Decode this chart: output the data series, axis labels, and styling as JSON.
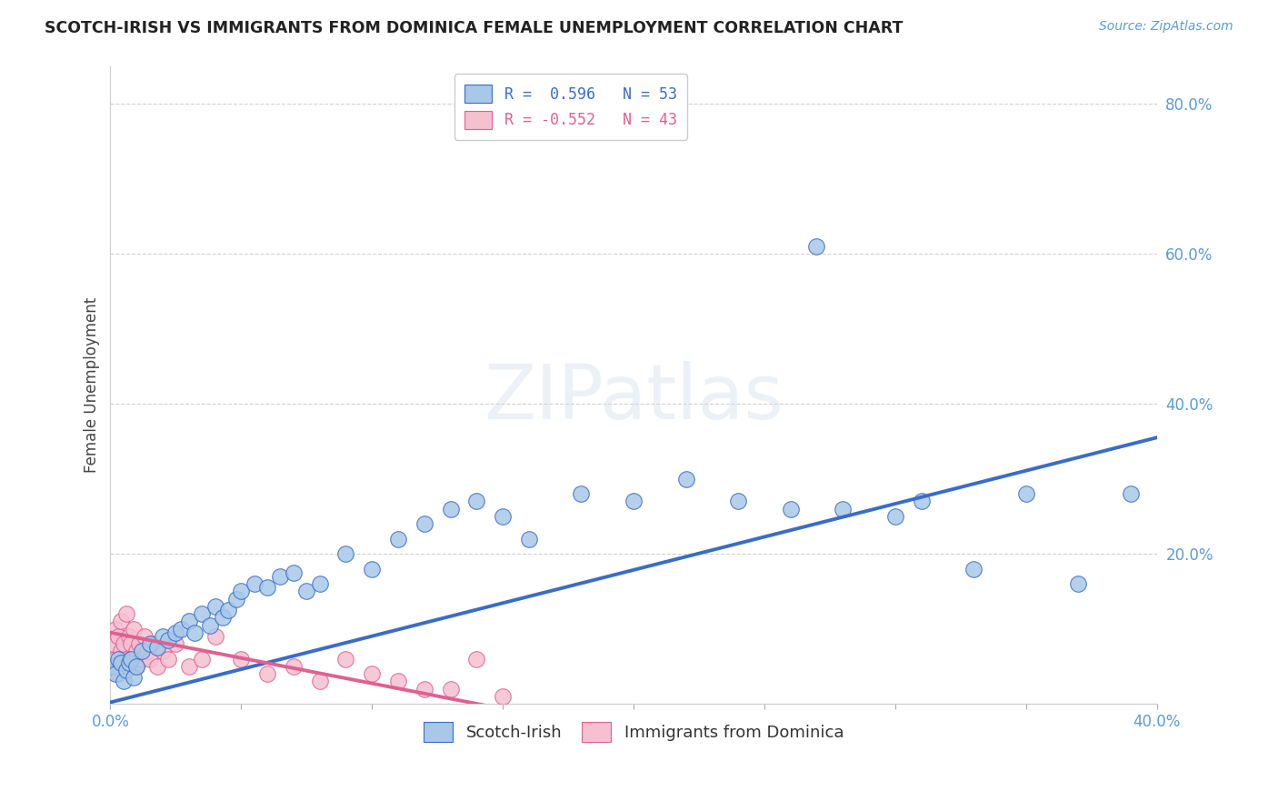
{
  "title": "SCOTCH-IRISH VS IMMIGRANTS FROM DOMINICA FEMALE UNEMPLOYMENT CORRELATION CHART",
  "source": "Source: ZipAtlas.com",
  "ylabel": "Female Unemployment",
  "x_min": 0.0,
  "x_max": 0.4,
  "y_min": 0.0,
  "y_max": 0.85,
  "background_color": "#ffffff",
  "scotch_irish_color": "#a8c8e8",
  "dominica_color": "#f5c0d0",
  "scotch_irish_line_color": "#3a6cc8",
  "dominica_line_color": "#e06090",
  "legend_r1": "R =  0.596",
  "legend_n1": "N = 53",
  "legend_r2": "R = -0.552",
  "legend_n2": "N = 43",
  "watermark": "ZIPatlas",
  "scotch_irish_x": [
    0.001,
    0.002,
    0.003,
    0.004,
    0.005,
    0.006,
    0.007,
    0.008,
    0.009,
    0.01,
    0.012,
    0.015,
    0.018,
    0.02,
    0.022,
    0.025,
    0.027,
    0.03,
    0.032,
    0.035,
    0.038,
    0.04,
    0.043,
    0.045,
    0.048,
    0.05,
    0.055,
    0.06,
    0.065,
    0.07,
    0.075,
    0.08,
    0.09,
    0.1,
    0.11,
    0.12,
    0.13,
    0.14,
    0.15,
    0.16,
    0.18,
    0.2,
    0.22,
    0.24,
    0.26,
    0.27,
    0.28,
    0.3,
    0.31,
    0.33,
    0.35,
    0.37,
    0.39
  ],
  "scotch_irish_y": [
    0.05,
    0.04,
    0.06,
    0.055,
    0.03,
    0.045,
    0.055,
    0.06,
    0.035,
    0.05,
    0.07,
    0.08,
    0.075,
    0.09,
    0.085,
    0.095,
    0.1,
    0.11,
    0.095,
    0.12,
    0.105,
    0.13,
    0.115,
    0.125,
    0.14,
    0.15,
    0.16,
    0.155,
    0.17,
    0.175,
    0.15,
    0.16,
    0.2,
    0.18,
    0.22,
    0.24,
    0.26,
    0.27,
    0.25,
    0.22,
    0.28,
    0.27,
    0.3,
    0.27,
    0.26,
    0.61,
    0.26,
    0.25,
    0.27,
    0.18,
    0.28,
    0.16,
    0.28
  ],
  "dominica_x": [
    0.001,
    0.001,
    0.002,
    0.002,
    0.003,
    0.003,
    0.004,
    0.004,
    0.005,
    0.005,
    0.006,
    0.006,
    0.007,
    0.007,
    0.008,
    0.008,
    0.009,
    0.01,
    0.01,
    0.011,
    0.012,
    0.013,
    0.014,
    0.015,
    0.016,
    0.018,
    0.02,
    0.022,
    0.025,
    0.03,
    0.035,
    0.04,
    0.05,
    0.06,
    0.07,
    0.08,
    0.09,
    0.1,
    0.11,
    0.12,
    0.13,
    0.14,
    0.15
  ],
  "dominica_y": [
    0.08,
    0.05,
    0.1,
    0.06,
    0.09,
    0.04,
    0.11,
    0.07,
    0.08,
    0.05,
    0.12,
    0.06,
    0.09,
    0.05,
    0.08,
    0.06,
    0.1,
    0.07,
    0.05,
    0.08,
    0.06,
    0.09,
    0.07,
    0.06,
    0.08,
    0.05,
    0.07,
    0.06,
    0.08,
    0.05,
    0.06,
    0.09,
    0.06,
    0.04,
    0.05,
    0.03,
    0.06,
    0.04,
    0.03,
    0.02,
    0.02,
    0.06,
    0.01
  ],
  "si_line_x0": 0.0,
  "si_line_y0": 0.002,
  "si_line_x1": 0.4,
  "si_line_y1": 0.355,
  "dom_line_x0": 0.0,
  "dom_line_y0": 0.095,
  "dom_line_x1": 0.155,
  "dom_line_y1": -0.01
}
